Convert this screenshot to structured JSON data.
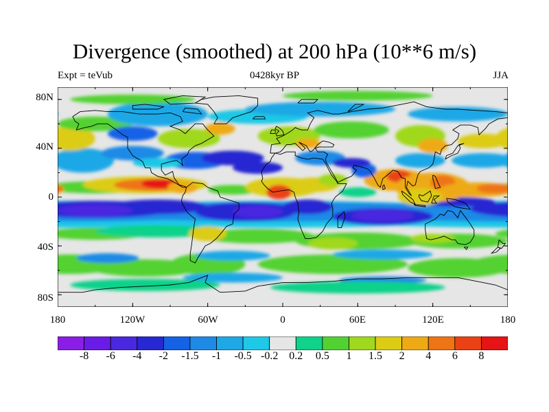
{
  "title": "Divergence (smoothed) at 200 hPa (10**6 m/s)",
  "subtitle_left": "Expt = teVub",
  "subtitle_center": "0428kyr BP",
  "subtitle_right": "JJA",
  "y_ticks": [
    "80N",
    "40N",
    "0",
    "40S",
    "80S"
  ],
  "x_ticks": [
    "180",
    "120W",
    "60W",
    "0",
    "60E",
    "120E",
    "180"
  ],
  "colorbar": {
    "labels": [
      "-8",
      "-6",
      "-4",
      "-2",
      "-1.5",
      "-1",
      "-0.5",
      "-0.2",
      "0.2",
      "0.5",
      "1",
      "1.5",
      "2",
      "4",
      "6",
      "8"
    ],
    "colors": [
      "#8a1ee6",
      "#6a1ce6",
      "#4a28e0",
      "#2828d2",
      "#1462e6",
      "#1e8ae6",
      "#1ea8e6",
      "#1ec8e6",
      "#e6e6e6",
      "#10d28a",
      "#52d232",
      "#a0d81e",
      "#dccc14",
      "#eeaa14",
      "#ee7414",
      "#ea4214",
      "#e61414"
    ]
  },
  "chart_data": {
    "type": "contour map",
    "variable": "Divergence (smoothed) at 200 hPa",
    "units": "10**6 m/s",
    "season": "JJA",
    "experiment": "teVub",
    "time": "0428kyr BP",
    "projection": "cylindrical equidistant",
    "lon_range": [
      -180,
      180
    ],
    "lat_range": [
      -90,
      90
    ],
    "contour_levels": [
      -8,
      -6,
      -4,
      -2,
      -1.5,
      -1,
      -0.5,
      -0.2,
      0.2,
      0.5,
      1,
      1.5,
      2,
      4,
      6,
      8
    ],
    "notable_maxima": [
      {
        "region": "Eastern tropical Pacific / Central America",
        "lon": -100,
        "lat": 10,
        "value": 8
      },
      {
        "region": "Bay of Bengal",
        "lon": 90,
        "lat": 15,
        "value": 6
      },
      {
        "region": "Western Pacific warm pool",
        "lon": 130,
        "lat": 10,
        "value": 4
      },
      {
        "region": "West Africa",
        "lon": 0,
        "lat": 5,
        "value": 6
      }
    ],
    "notable_minima": [
      {
        "region": "Southern tropical Pacific",
        "lon": -150,
        "lat": -10,
        "value": -4
      },
      {
        "region": "Southern tropical Atlantic",
        "lon": -20,
        "lat": -12,
        "value": -4
      },
      {
        "region": "Southern tropical Indian Ocean",
        "lon": 80,
        "lat": -15,
        "value": -4
      },
      {
        "region": "Mid-latitude North Atlantic",
        "lon": -40,
        "lat": 35,
        "value": -2
      }
    ]
  }
}
